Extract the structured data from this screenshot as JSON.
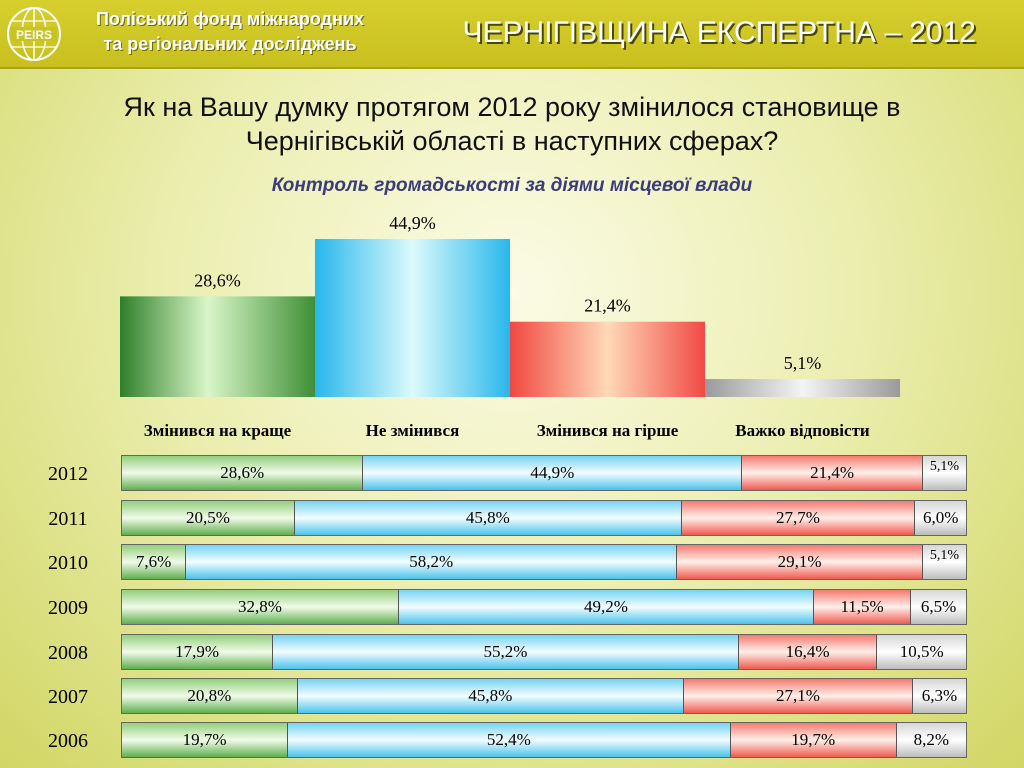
{
  "header": {
    "logo_text": "PEIRS",
    "org_line_1": "Поліський фонд міжнародних",
    "org_line_2": "та регіональних досліджень",
    "title": "ЧЕРНІГІВЩИНА ЕКСПЕРТНА – 2012"
  },
  "question": {
    "line_1": "Як на Вашу думку протягом 2012 року змінилося становище в",
    "line_2": "Чернігівській області в наступних сферах?"
  },
  "subtitle": "Контроль громадськості за діями місцевої влади",
  "colors": {
    "better": "#4f9a45",
    "same": "#37c3ee",
    "worse": "#f0524a",
    "hard": "#a8a8a8"
  },
  "chart_data": [
    {
      "type": "bar",
      "categories": [
        "Змінився на краще",
        "Не змінився",
        "Змінився на гірше",
        "Важко відповісти"
      ],
      "values": [
        28.6,
        44.9,
        21.4,
        5.1
      ],
      "value_labels": [
        "28,6%",
        "44,9%",
        "21,4%",
        "5,1%"
      ],
      "title": "Контроль громадськості за діями місцевої влади",
      "ylim": [
        0,
        44.9
      ]
    },
    {
      "type": "bar",
      "orientation": "horizontal-stacked-100",
      "categories": [
        "2012",
        "2011",
        "2010",
        "2009",
        "2008",
        "2007",
        "2006"
      ],
      "series": [
        {
          "name": "Змінився на краще",
          "values": [
            28.6,
            20.5,
            7.6,
            32.8,
            17.9,
            20.8,
            19.7
          ],
          "labels": [
            "28,6%",
            "20,5%",
            "7,6%",
            "32,8%",
            "17,9%",
            "20,8%",
            "19,7%"
          ]
        },
        {
          "name": "Не змінився",
          "values": [
            44.9,
            45.8,
            58.2,
            49.2,
            55.2,
            45.8,
            52.4
          ],
          "labels": [
            "44,9%",
            "45,8%",
            "58,2%",
            "49,2%",
            "55,2%",
            "45,8%",
            "52,4%"
          ]
        },
        {
          "name": "Змінився на гірше",
          "values": [
            21.4,
            27.7,
            29.1,
            11.5,
            16.4,
            27.1,
            19.7
          ],
          "labels": [
            "21,4%",
            "27,7%",
            "29,1%",
            "11,5%",
            "16,4%",
            "27,1%",
            "19,7%"
          ]
        },
        {
          "name": "Важко відповісти",
          "values": [
            5.1,
            6.0,
            5.1,
            6.5,
            10.5,
            6.3,
            8.2
          ],
          "labels": [
            "5,1%",
            "6,0%",
            "5,1%",
            "6,5%",
            "10,5%",
            "6,3%",
            "8,2%"
          ]
        }
      ]
    }
  ]
}
